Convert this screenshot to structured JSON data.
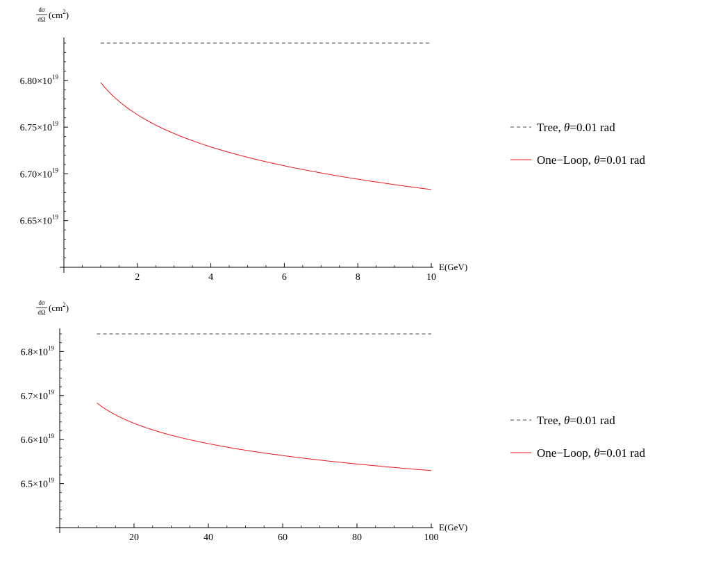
{
  "chart_data": [
    {
      "type": "line",
      "ylabel": {
        "numerator": "dσ",
        "denominator": "dΩ",
        "unit": "(cm",
        "unit_exp": "2",
        "unit_close": ")"
      },
      "xlabel": "E(GeV)",
      "xlim": [
        0,
        10
      ],
      "ylim": [
        6.6,
        6.84
      ],
      "x_ticks": [
        2,
        4,
        6,
        8,
        10
      ],
      "y_ticks": [
        {
          "value": 6.65,
          "mantissa": "6.65",
          "times": "×",
          "base": "10",
          "exponent": "19"
        },
        {
          "value": 6.7,
          "mantissa": "6.70",
          "times": "×",
          "base": "10",
          "exponent": "19"
        },
        {
          "value": 6.75,
          "mantissa": "6.75",
          "times": "×",
          "base": "10",
          "exponent": "19"
        },
        {
          "value": 6.8,
          "mantissa": "6.80",
          "times": "×",
          "base": "10",
          "exponent": "19"
        }
      ],
      "series": [
        {
          "name": "Tree",
          "legend": {
            "prefix": "Tree, ",
            "symbol": "θ",
            "suffix": "=0.01 rad"
          },
          "style": "dashed",
          "color": "#444444",
          "x": [
            1,
            10
          ],
          "y": [
            6.84,
            6.84
          ]
        },
        {
          "name": "One-Loop",
          "legend": {
            "prefix": "One−Loop, ",
            "symbol": "θ",
            "suffix": "=0.01 rad"
          },
          "style": "solid",
          "color": "#e8171c",
          "x": [
            1,
            1.5,
            2,
            3,
            4,
            5,
            6,
            7,
            8,
            9,
            10
          ],
          "y": [
            6.793,
            6.778,
            6.766,
            6.746,
            6.731,
            6.719,
            6.709,
            6.701,
            6.693,
            6.687,
            6.681
          ]
        }
      ]
    },
    {
      "type": "line",
      "ylabel": {
        "numerator": "dσ",
        "denominator": "dΩ",
        "unit": "(cm",
        "unit_exp": "2",
        "unit_close": ")"
      },
      "xlabel": "E(GeV)",
      "xlim": [
        0,
        100
      ],
      "ylim": [
        6.4,
        6.84
      ],
      "x_ticks": [
        20,
        40,
        60,
        80,
        100
      ],
      "y_ticks": [
        {
          "value": 6.5,
          "mantissa": "6.5",
          "times": "×",
          "base": "10",
          "exponent": "19"
        },
        {
          "value": 6.6,
          "mantissa": "6.6",
          "times": "×",
          "base": "10",
          "exponent": "19"
        },
        {
          "value": 6.7,
          "mantissa": "6.7",
          "times": "×",
          "base": "10",
          "exponent": "19"
        },
        {
          "value": 6.8,
          "mantissa": "6.8",
          "times": "×",
          "base": "10",
          "exponent": "19"
        }
      ],
      "series": [
        {
          "name": "Tree",
          "legend": {
            "prefix": "Tree, ",
            "symbol": "θ",
            "suffix": "=0.01 rad"
          },
          "style": "dashed",
          "color": "#444444",
          "x": [
            10,
            100
          ],
          "y": [
            6.84,
            6.84
          ]
        },
        {
          "name": "One-Loop",
          "legend": {
            "prefix": "One−Loop, ",
            "symbol": "θ",
            "suffix": "=0.01 rad"
          },
          "style": "solid",
          "color": "#e8171c",
          "x": [
            10,
            15,
            20,
            30,
            40,
            50,
            60,
            70,
            80,
            90,
            100
          ],
          "y": [
            6.681,
            6.656,
            6.638,
            6.611,
            6.592,
            6.577,
            6.565,
            6.554,
            6.544,
            6.536,
            6.527
          ]
        }
      ]
    }
  ]
}
